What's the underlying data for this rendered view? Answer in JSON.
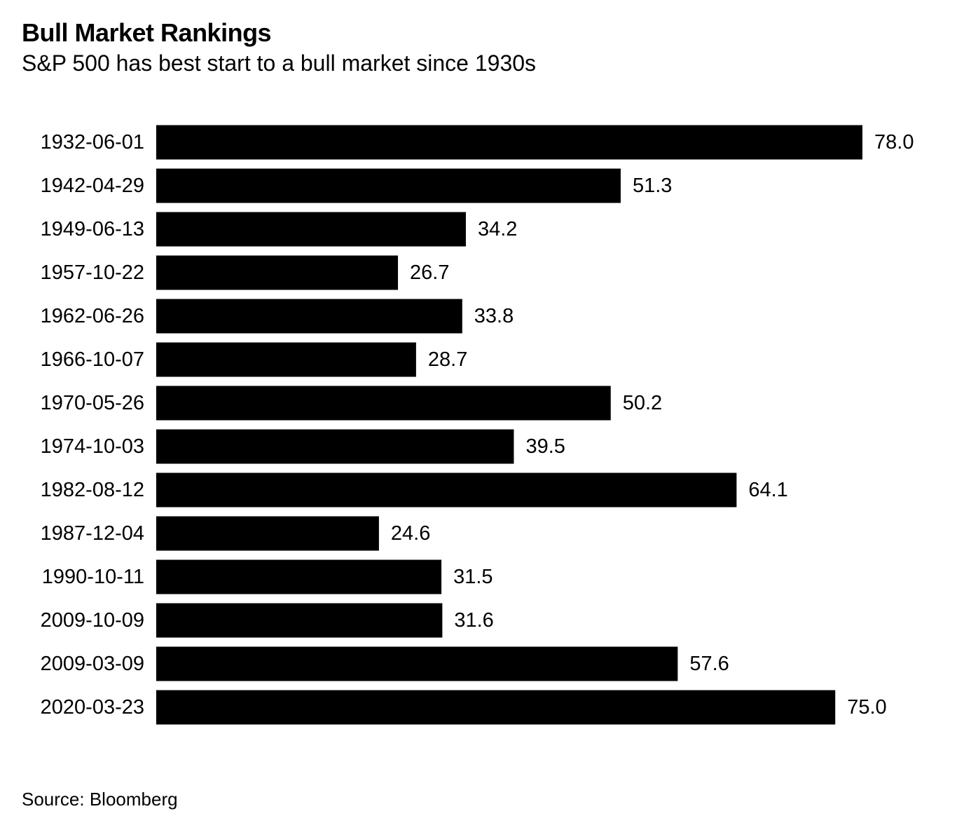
{
  "header": {
    "title": "Bull Market Rankings",
    "subtitle": "S&P 500 has best start to a bull market since 1930s"
  },
  "footer": {
    "source": "Source: Bloomberg"
  },
  "colors": {
    "bar": "#000000",
    "text": "#000000",
    "background": "#ffffff"
  },
  "chart_data": {
    "type": "bar",
    "orientation": "horizontal",
    "title": "Bull Market Rankings",
    "subtitle": "S&P 500 has best start to a bull market since 1930s",
    "categories": [
      "1932-06-01",
      "1942-04-29",
      "1949-06-13",
      "1957-10-22",
      "1962-06-26",
      "1966-10-07",
      "1970-05-26",
      "1974-10-03",
      "1982-08-12",
      "1987-12-04",
      "1990-10-11",
      "2009-10-09",
      "2009-03-09",
      "2020-03-23"
    ],
    "values": [
      78.0,
      51.3,
      34.2,
      26.7,
      33.8,
      28.7,
      50.2,
      39.5,
      64.1,
      24.6,
      31.5,
      31.6,
      57.6,
      75.0
    ],
    "value_labels": [
      "78.0",
      "51.3",
      "34.2",
      "26.7",
      "33.8",
      "28.7",
      "50.2",
      "39.5",
      "64.1",
      "24.6",
      "31.5",
      "31.6",
      "57.6",
      "75.0"
    ],
    "xlim": [
      0,
      78.0
    ],
    "grid": false,
    "legend": "none",
    "xlabel": "",
    "ylabel": ""
  }
}
